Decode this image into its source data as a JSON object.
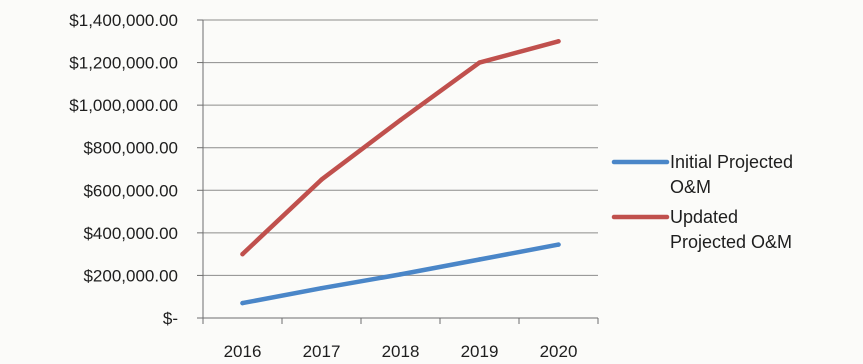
{
  "chart_data": {
    "type": "line",
    "categories": [
      "2016",
      "2017",
      "2018",
      "2019",
      "2020"
    ],
    "series": [
      {
        "name": "Initial Projected O&M",
        "legend_lines": [
          "Initial Projected",
          "O&M"
        ],
        "color": "#4a86c8",
        "values": [
          70000,
          140000,
          205000,
          275000,
          345000
        ]
      },
      {
        "name": "Updated Projected O&M",
        "legend_lines": [
          "Updated",
          "Projected O&M"
        ],
        "color": "#c0504d",
        "values": [
          300000,
          650000,
          930000,
          1200000,
          1300000
        ]
      }
    ],
    "y_ticks": [
      0,
      200000,
      400000,
      600000,
      800000,
      1000000,
      1200000,
      1400000
    ],
    "y_tick_labels": [
      "$-",
      "$200,000.00",
      "$400,000.00",
      "$600,000.00",
      "$800,000.00",
      "$1,000,000.00",
      "$1,200,000.00",
      "$1,400,000.00"
    ],
    "ylim": [
      0,
      1400000
    ],
    "grid": true,
    "legend_position": "right",
    "title": "",
    "xlabel": "",
    "ylabel": ""
  }
}
